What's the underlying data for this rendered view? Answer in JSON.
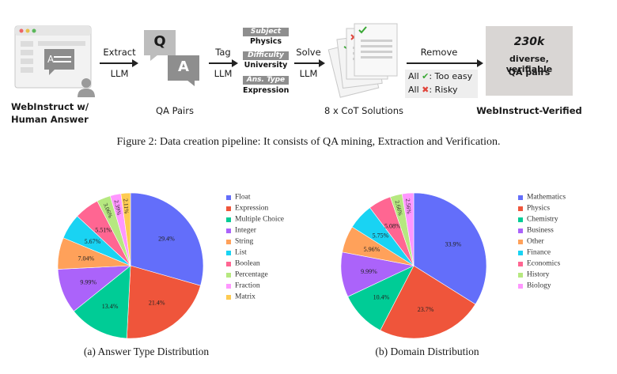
{
  "pipeline": {
    "source_label": "WebInstruct w/\nHuman Answer",
    "extract": {
      "verb": "Extract",
      "by": "LLM"
    },
    "qa": {
      "q": "Q",
      "a": "A",
      "label": "QA Pairs"
    },
    "tag": {
      "verb": "Tag",
      "by": "LLM"
    },
    "tags": [
      {
        "header": "Subject",
        "value": "Physics"
      },
      {
        "header": "Difficulty",
        "value": "University"
      },
      {
        "header": "Ans. Type",
        "value": "Expression"
      }
    ],
    "solve": {
      "verb": "Solve",
      "by": "LLM"
    },
    "solutions_label": "8 x CoT Solutions",
    "remove": {
      "verb": "Remove",
      "rule1_prefix": "All",
      "rule1_suffix": ": Too easy",
      "rule2_prefix": "All",
      "rule2_suffix": ": Risky"
    },
    "result": {
      "count": "230k",
      "line1": "diverse, verifiable",
      "line2": "QA pairs"
    },
    "result_label": "WebInstruct-Verified"
  },
  "figure2_caption": "Figure 2: Data creation pipeline: It consists of QA mining, Extraction and Verification.",
  "chart_data": [
    {
      "type": "pie",
      "title": "(a) Answer Type Distribution",
      "categories": [
        "Float",
        "Expression",
        "Multiple Choice",
        "Integer",
        "String",
        "List",
        "Boolean",
        "Percentage",
        "Fraction",
        "Matrix"
      ],
      "values": [
        29.4,
        21.4,
        13.4,
        9.99,
        7.04,
        5.67,
        5.51,
        3.06,
        2.39,
        2.11
      ],
      "value_labels": [
        "29.4%",
        "21.4%",
        "13.4%",
        "9.99%",
        "7.04%",
        "5.67%",
        "5.51%",
        "3.06%",
        "2.39%",
        "2.11%"
      ],
      "colors": [
        "#636efa",
        "#ef553b",
        "#00cc96",
        "#ab63fa",
        "#ffa15a",
        "#19d3f3",
        "#ff6692",
        "#b6e880",
        "#ff97ff",
        "#fecb52"
      ]
    },
    {
      "type": "pie",
      "title": "(b) Domain Distribution",
      "categories": [
        "Mathematics",
        "Physics",
        "Chemistry",
        "Business",
        "Other",
        "Finance",
        "Economics",
        "History",
        "Biology"
      ],
      "values": [
        33.9,
        23.7,
        10.4,
        9.99,
        5.96,
        5.75,
        5.08,
        2.66,
        2.56
      ],
      "value_labels": [
        "33.9%",
        "23.7%",
        "10.4%",
        "9.99%",
        "5.96%",
        "5.75%",
        "5.08%",
        "2.66%",
        "2.56%"
      ],
      "colors": [
        "#636efa",
        "#ef553b",
        "#00cc96",
        "#ab63fa",
        "#ffa15a",
        "#19d3f3",
        "#ff6692",
        "#b6e880",
        "#ff97ff"
      ]
    }
  ],
  "colors": {
    "tag_header_bg": "#8e8e8e",
    "result_bg": "#d9d6d4",
    "qa_box": "#bdbdbd",
    "check_green": "#3aa835",
    "cross_red": "#e0443a"
  }
}
